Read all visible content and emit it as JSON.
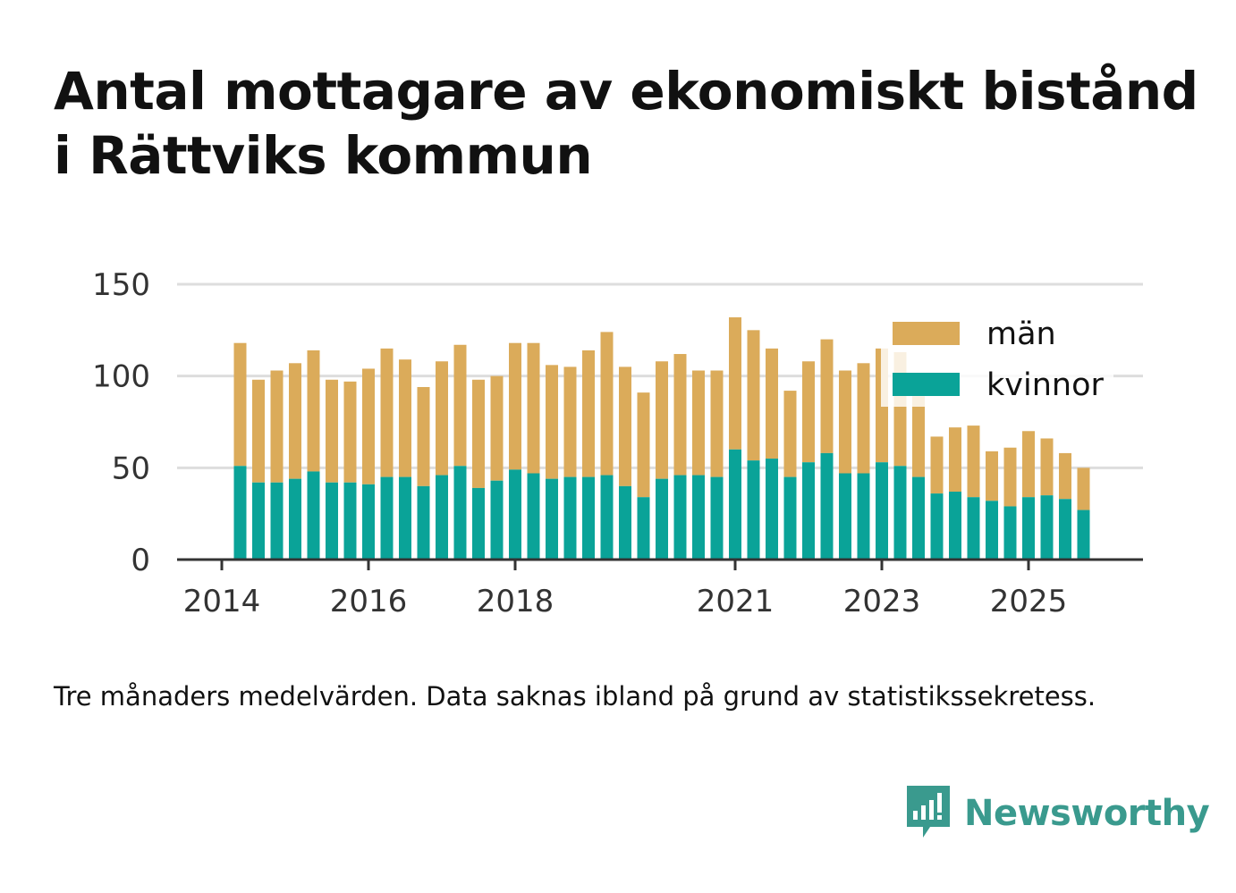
{
  "title": "Antal mottagare av ekonomiskt bistånd i Rättviks kommun",
  "note": "Tre månaders medelvärden. Data saknas ibland på grund av statistikssekretess.",
  "brand": {
    "name": "Newsworthy",
    "icon": "newsworthy-logo-icon"
  },
  "colors": {
    "man": "#dbab5a",
    "kvinnor": "#0aa398",
    "grid": "#dddddd",
    "axis": "#333333",
    "brand": "#3a9a8e"
  },
  "chart_data": {
    "type": "bar",
    "stacked": true,
    "title": "Antal mottagare av ekonomiskt bistånd i Rättviks kommun",
    "xlabel": "",
    "ylabel": "",
    "ylim": [
      0,
      150
    ],
    "yticks": [
      "0",
      "50",
      "100",
      "150"
    ],
    "xticks": [
      {
        "label": "2014",
        "year": 2014
      },
      {
        "label": "2016",
        "year": 2016
      },
      {
        "label": "2018",
        "year": 2018
      },
      {
        "label": "2021",
        "year": 2021
      },
      {
        "label": "2023",
        "year": 2023
      },
      {
        "label": "2025",
        "year": 2025
      }
    ],
    "xrange": [
      2014,
      2027.1
    ],
    "grid": true,
    "legend_position": "top-right",
    "x": [
      2014.25,
      2014.5,
      2014.75,
      2015.0,
      2015.25,
      2015.5,
      2015.75,
      2016.0,
      2016.25,
      2016.5,
      2016.75,
      2017.0,
      2017.25,
      2017.5,
      2017.75,
      2018.0,
      2018.25,
      2018.5,
      2018.75,
      2019.0,
      2019.25,
      2019.5,
      2019.75,
      2020.0,
      2020.25,
      2020.5,
      2020.75,
      2021.0,
      2021.25,
      2021.5,
      2021.75,
      2022.0,
      2022.25,
      2022.5,
      2022.75,
      2023.0,
      2023.25,
      2023.5,
      2023.75,
      2024.0,
      2024.25,
      2024.5,
      2024.75,
      2025.0,
      2025.25,
      2025.5,
      2025.75
    ],
    "series": [
      {
        "name": "kvinnor",
        "color": "#0aa398",
        "values": [
          51,
          42,
          42,
          44,
          48,
          42,
          42,
          41,
          45,
          45,
          40,
          46,
          51,
          39,
          43,
          49,
          47,
          44,
          45,
          45,
          46,
          40,
          34,
          44,
          46,
          46,
          45,
          60,
          54,
          55,
          45,
          53,
          58,
          47,
          47,
          53,
          51,
          45,
          36,
          37,
          34,
          32,
          29,
          34,
          35,
          33,
          27
        ]
      },
      {
        "name": "män",
        "color": "#dbab5a",
        "values": [
          67,
          56,
          61,
          63,
          66,
          56,
          55,
          63,
          70,
          64,
          54,
          62,
          66,
          59,
          57,
          69,
          71,
          62,
          60,
          69,
          78,
          65,
          57,
          64,
          66,
          57,
          58,
          72,
          71,
          60,
          47,
          55,
          62,
          56,
          60,
          62,
          62,
          44,
          31,
          35,
          39,
          27,
          32,
          36,
          31,
          25,
          23
        ]
      }
    ]
  }
}
